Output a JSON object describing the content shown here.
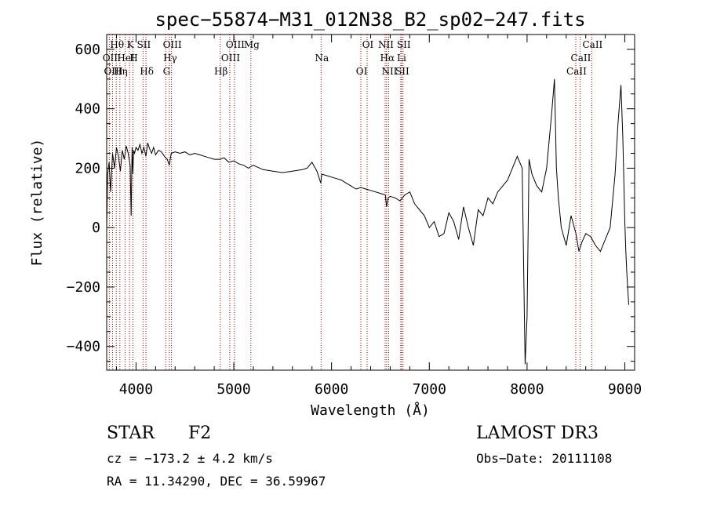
{
  "chart_data": {
    "type": "line",
    "title": "spec−55874−M31_012N38_B2_sp02−247.fits",
    "xlabel": "Wavelength (Å)",
    "ylabel": "Flux (relative)",
    "xlim": [
      3700,
      9100
    ],
    "ylim": [
      -480,
      650
    ],
    "xticks": [
      4000,
      5000,
      6000,
      7000,
      8000,
      9000
    ],
    "yticks": [
      -400,
      -200,
      0,
      200,
      400,
      600
    ],
    "ytick_labels": [
      "−400",
      "−200",
      "0",
      "200",
      "400",
      "600"
    ],
    "grid": false,
    "spectrum_color": "#000000",
    "line_marker_color": "#aa0000",
    "series": [
      {
        "x": [
          3700,
          3710,
          3725,
          3740,
          3760,
          3780,
          3800,
          3820,
          3840,
          3860,
          3880,
          3900,
          3920,
          3940,
          3950,
          3960,
          3968,
          3975,
          3985,
          4000,
          4020,
          4040,
          4060,
          4080,
          4101,
          4120,
          4140,
          4160,
          4180,
          4200,
          4230,
          4260,
          4290,
          4320,
          4340,
          4360,
          4400,
          4450,
          4500,
          4550,
          4600,
          4650,
          4700,
          4750,
          4800,
          4861,
          4900,
          4950,
          5000,
          5050,
          5100,
          5150,
          5175,
          5200,
          5300,
          5400,
          5500,
          5600,
          5700,
          5750,
          5800,
          5850,
          5890,
          5900,
          5950,
          6000,
          6050,
          6100,
          6150,
          6200,
          6250,
          6300,
          6350,
          6400,
          6450,
          6500,
          6550,
          6563,
          6580,
          6600,
          6650,
          6700,
          6750,
          6800,
          6850,
          6900,
          6950,
          7000,
          7050,
          7100,
          7150,
          7200,
          7250,
          7300,
          7350,
          7400,
          7450,
          7500,
          7550,
          7600,
          7650,
          7700,
          7750,
          7800,
          7850,
          7900,
          7950,
          7980,
          8000,
          8020,
          8050,
          8100,
          8150,
          8200,
          8250,
          8280,
          8300,
          8320,
          8350,
          8400,
          8450,
          8500,
          8530,
          8560,
          8600,
          8650,
          8700,
          8750,
          8800,
          8850,
          8900,
          8930,
          8960,
          8980,
          9000,
          9010,
          9020,
          9040
        ],
        "y": [
          0,
          180,
          220,
          120,
          250,
          200,
          270,
          240,
          190,
          260,
          230,
          275,
          250,
          210,
          40,
          270,
          180,
          260,
          250,
          270,
          260,
          280,
          250,
          270,
          240,
          285,
          265,
          250,
          270,
          245,
          260,
          255,
          240,
          230,
          210,
          250,
          255,
          250,
          255,
          245,
          250,
          245,
          240,
          235,
          230,
          230,
          235,
          220,
          225,
          215,
          210,
          200,
          205,
          210,
          195,
          190,
          185,
          190,
          195,
          200,
          220,
          190,
          150,
          180,
          175,
          170,
          165,
          160,
          150,
          140,
          130,
          135,
          130,
          125,
          120,
          115,
          110,
          70,
          100,
          105,
          100,
          90,
          110,
          120,
          80,
          60,
          40,
          0,
          20,
          -30,
          -20,
          50,
          20,
          -40,
          70,
          0,
          -60,
          60,
          40,
          100,
          80,
          120,
          140,
          160,
          200,
          240,
          200,
          -460,
          -300,
          230,
          180,
          140,
          120,
          200,
          380,
          500,
          200,
          100,
          0,
          -60,
          40,
          -20,
          -80,
          -50,
          -20,
          -30,
          -60,
          -80,
          -40,
          0,
          180,
          350,
          480,
          300,
          20,
          -80,
          -150,
          -260
        ]
      }
    ],
    "spectral_lines": [
      {
        "label": "Hθ",
        "x": 3798
      },
      {
        "label": "OII",
        "x": 3727
      },
      {
        "label": "OIII",
        "x": 3760
      },
      {
        "label": "K",
        "x": 3934
      },
      {
        "label": "HeI",
        "x": 3889
      },
      {
        "label": "Hη",
        "x": 3835
      },
      {
        "label": "SII",
        "x": 4072
      },
      {
        "label": "H",
        "x": 3969
      },
      {
        "label": "Hδ",
        "x": 4102
      },
      {
        "label": "OIII",
        "x": 4363
      },
      {
        "label": "Hγ",
        "x": 4341
      },
      {
        "label": "G",
        "x": 4305
      },
      {
        "label": "OIII",
        "x": 5007
      },
      {
        "label": "OIII",
        "x": 4959
      },
      {
        "label": "Hβ",
        "x": 4861
      },
      {
        "label": "Mg",
        "x": 5175
      },
      {
        "label": "Na",
        "x": 5893
      },
      {
        "label": "OI",
        "x": 6300
      },
      {
        "label": "OI",
        "x": 6364
      },
      {
        "label": "Hα",
        "x": 6563
      },
      {
        "label": "SII",
        "x": 6716
      },
      {
        "label": "NII",
        "x": 6548
      },
      {
        "label": "Li",
        "x": 6708
      },
      {
        "label": "NII",
        "x": 6584
      },
      {
        "label": "SII",
        "x": 6731
      },
      {
        "label": "CaII",
        "x": 8542
      },
      {
        "label": "CaII",
        "x": 8498
      },
      {
        "label": "CaII",
        "x": 8662
      }
    ]
  },
  "info": {
    "class": "STAR",
    "subclass": "F2",
    "survey": "LAMOST DR3",
    "cz": "cz = −173.2 ± 4.2 km/s",
    "obs_date": "Obs−Date: 20111108",
    "radec": "RA =  11.34290, DEC =  36.59967"
  }
}
